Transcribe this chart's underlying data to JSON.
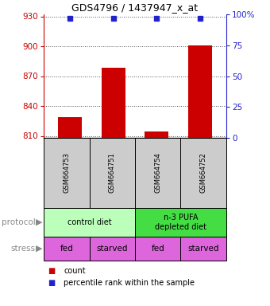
{
  "title": "GDS4796 / 1437947_x_at",
  "samples": [
    "GSM664753",
    "GSM664751",
    "GSM664754",
    "GSM664752"
  ],
  "bar_values": [
    829,
    878,
    814,
    901
  ],
  "bar_color": "#cc0000",
  "dot_color": "#2222cc",
  "ylim_left": [
    808,
    932
  ],
  "yticks_left": [
    810,
    840,
    870,
    900,
    930
  ],
  "ylim_right": [
    0,
    100
  ],
  "yticks_right": [
    0,
    25,
    50,
    75,
    100
  ],
  "yticklabels_right": [
    "0",
    "25",
    "50",
    "75",
    "100%"
  ],
  "left_tick_color": "#cc0000",
  "right_tick_color": "#2222cc",
  "sample_box_color": "#cccccc",
  "protocol_items": [
    {
      "label": "control diet",
      "start": 0,
      "end": 2,
      "color": "#bbffbb"
    },
    {
      "label": "n-3 PUFA\ndepleted diet",
      "start": 2,
      "end": 4,
      "color": "#44dd44"
    }
  ],
  "stress_labels": [
    "fed",
    "starved",
    "fed",
    "starved"
  ],
  "stress_color": "#dd66dd",
  "legend_items": [
    {
      "color": "#cc0000",
      "label": "count"
    },
    {
      "color": "#2222cc",
      "label": "percentile rank within the sample"
    }
  ],
  "dot_y": 928,
  "bar_base": 808,
  "bar_width": 0.55,
  "xlim": [
    -0.6,
    3.6
  ],
  "left_label_color": "#888888",
  "grid_linestyle": "dotted",
  "grid_color": "#555555",
  "grid_linewidth": 0.7
}
